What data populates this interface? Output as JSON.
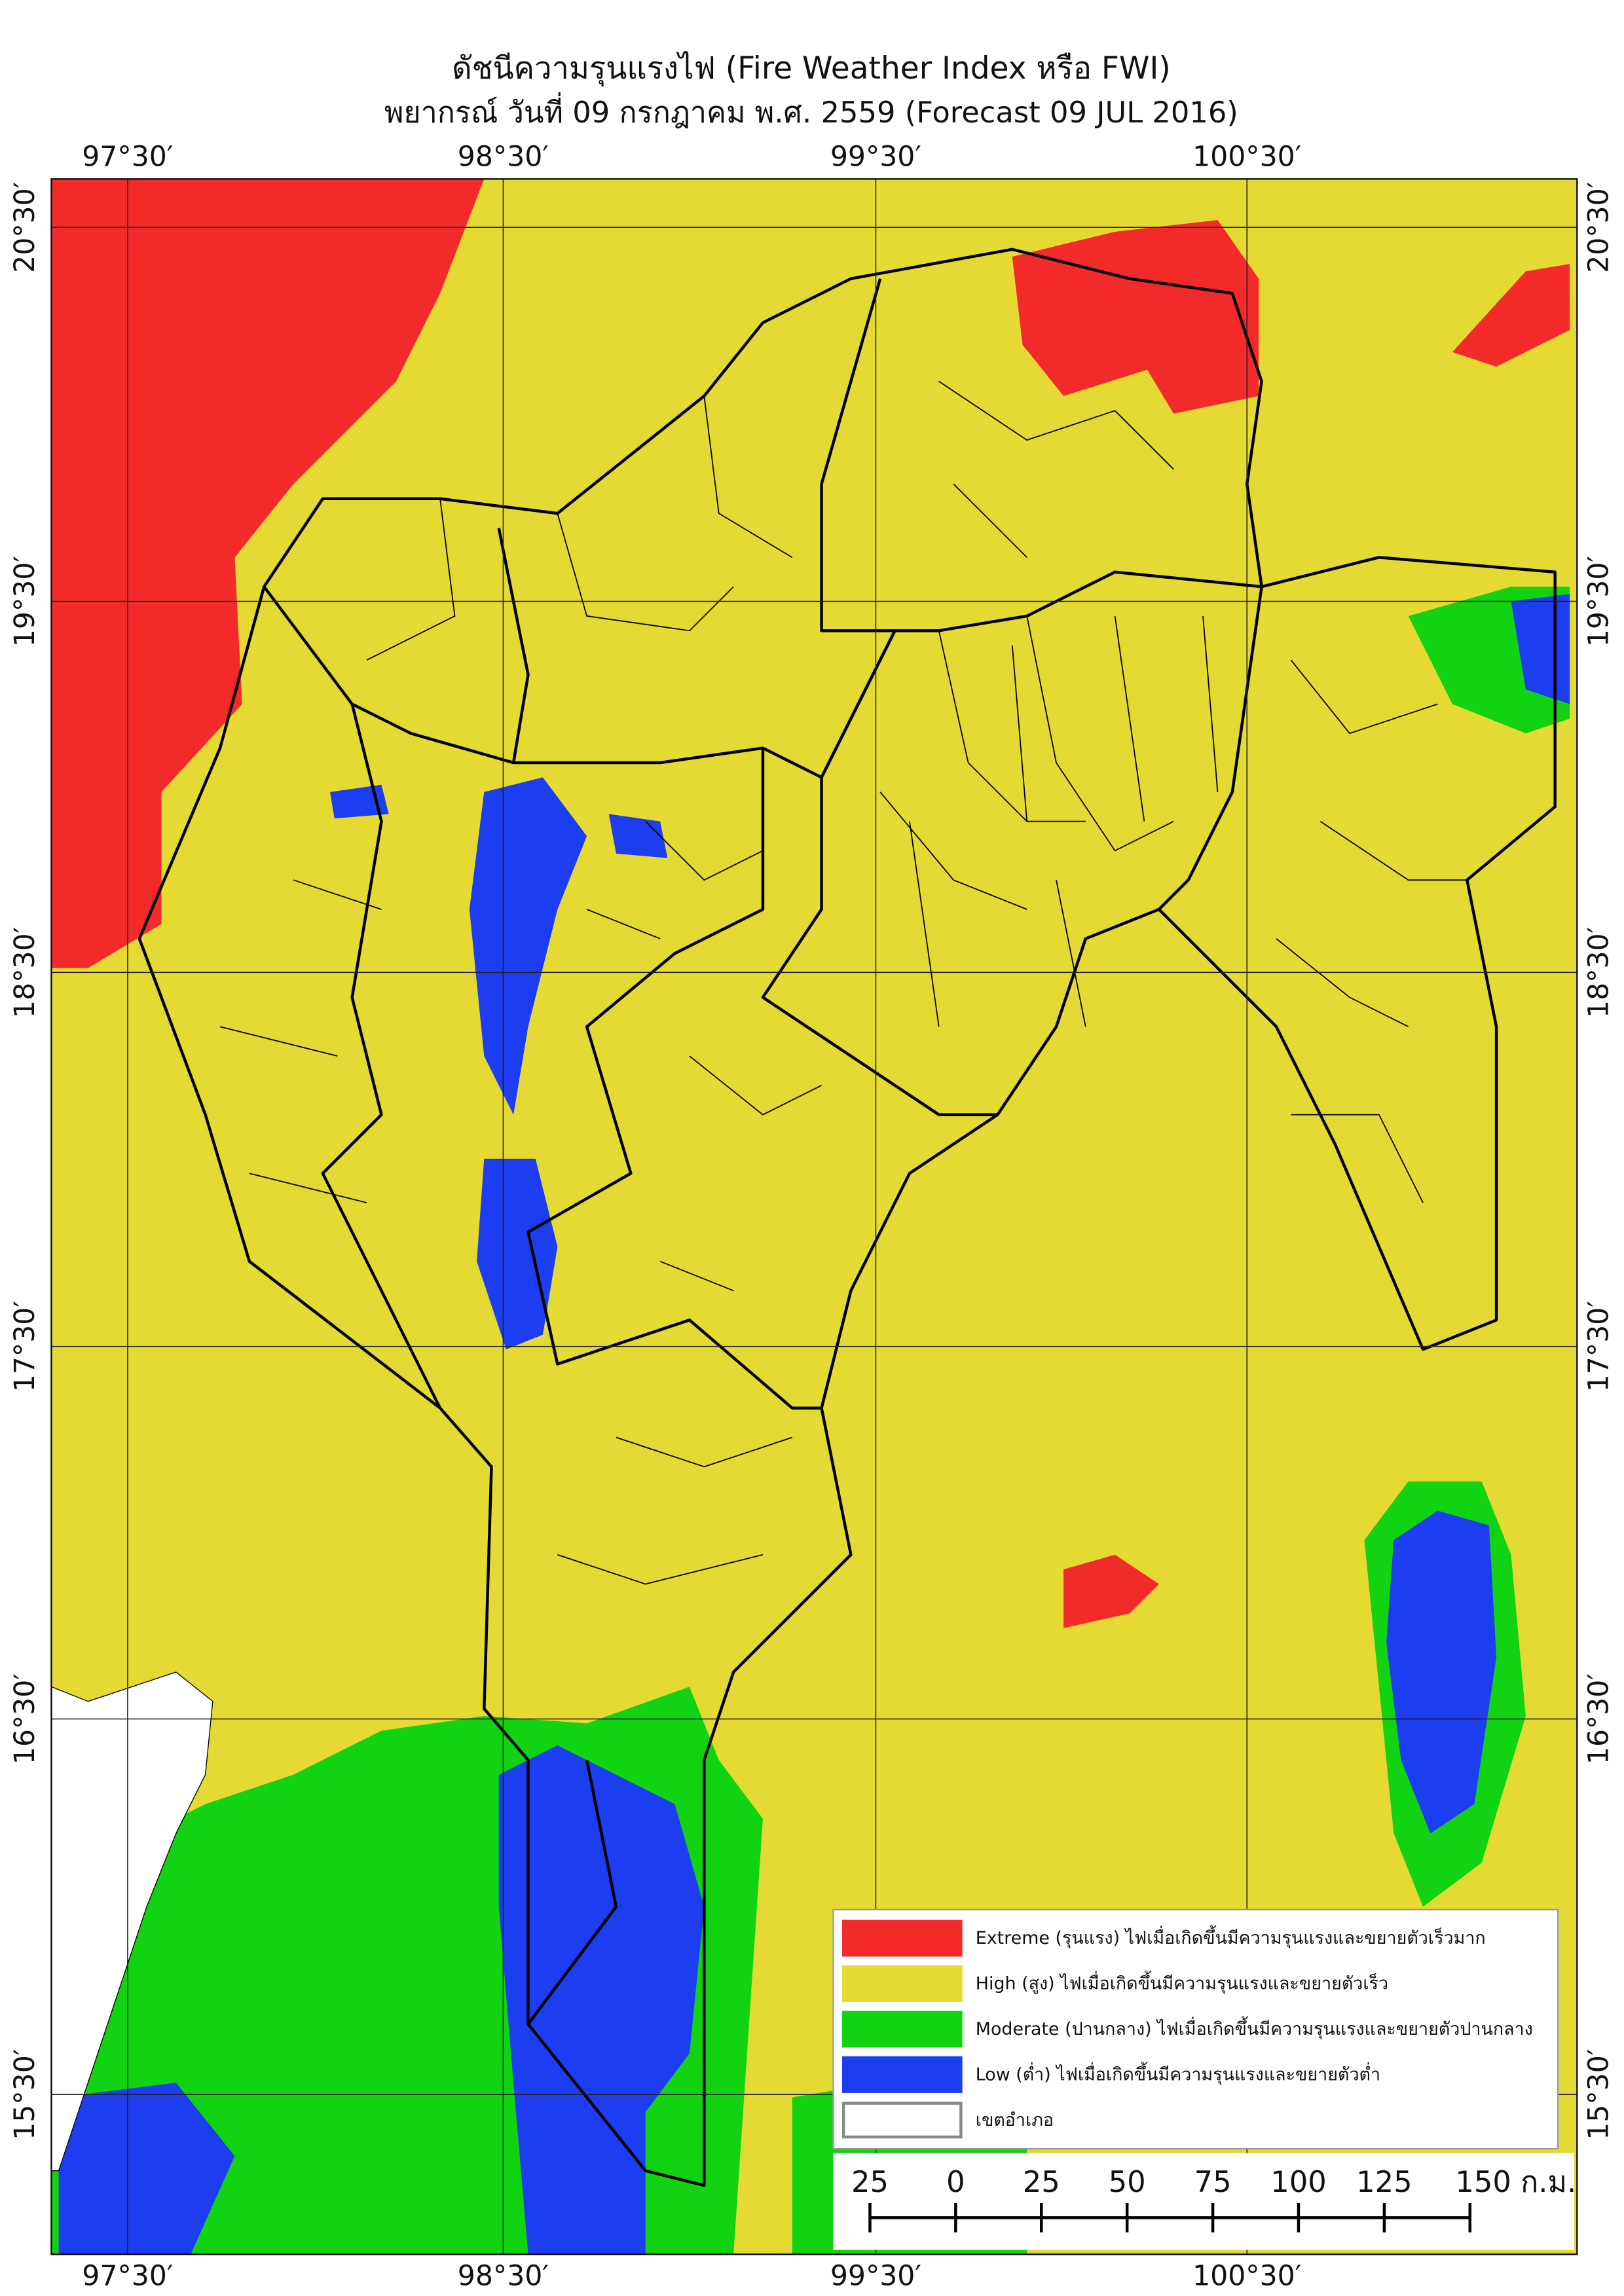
{
  "title": "ดัชนีความรุนแรงไฟ (Fire Weather Index หรือ FWI)",
  "subtitle": "พยากรณ์ วันที่ 09 กรกฎาคม พ.ศ. 2559 (Forecast 09 JUL 2016)",
  "longitude_labels": [
    "97°30′",
    "98°30′",
    "99°30′",
    "100°30′"
  ],
  "latitude_labels": [
    "20°30′",
    "19°30′",
    "18°30′",
    "17°30′",
    "16°30′",
    "15°30′"
  ],
  "legend": [
    {
      "label": "Extreme (รุนแรง) ไฟเมื่อเกิดขึ้นมีความรุนแรงและขยายตัวเร็วมาก",
      "color": "#f22a2a"
    },
    {
      "label": "High (สูง) ไฟเมื่อเกิดขึ้นมีความรุนแรงและขยายตัวเร็ว",
      "color": "#e5da33"
    },
    {
      "label": "Moderate (ปานกลาง) ไฟเมื่อเกิดขึ้นมีความรุนแรงและขยายตัวปานกลาง",
      "color": "#12d312"
    },
    {
      "label": "Low (ต่ำ) ไฟเมื่อเกิดขึ้นมีความรุนแรงและขยายตัวต่ำ",
      "color": "#1c3df0"
    },
    {
      "label": "เขตอำเภอ",
      "color": "#ffffff"
    }
  ],
  "scale_bar": {
    "labels": [
      "25",
      "0",
      "25",
      "50",
      "75",
      "100",
      "125",
      "150 ก.ม."
    ]
  }
}
